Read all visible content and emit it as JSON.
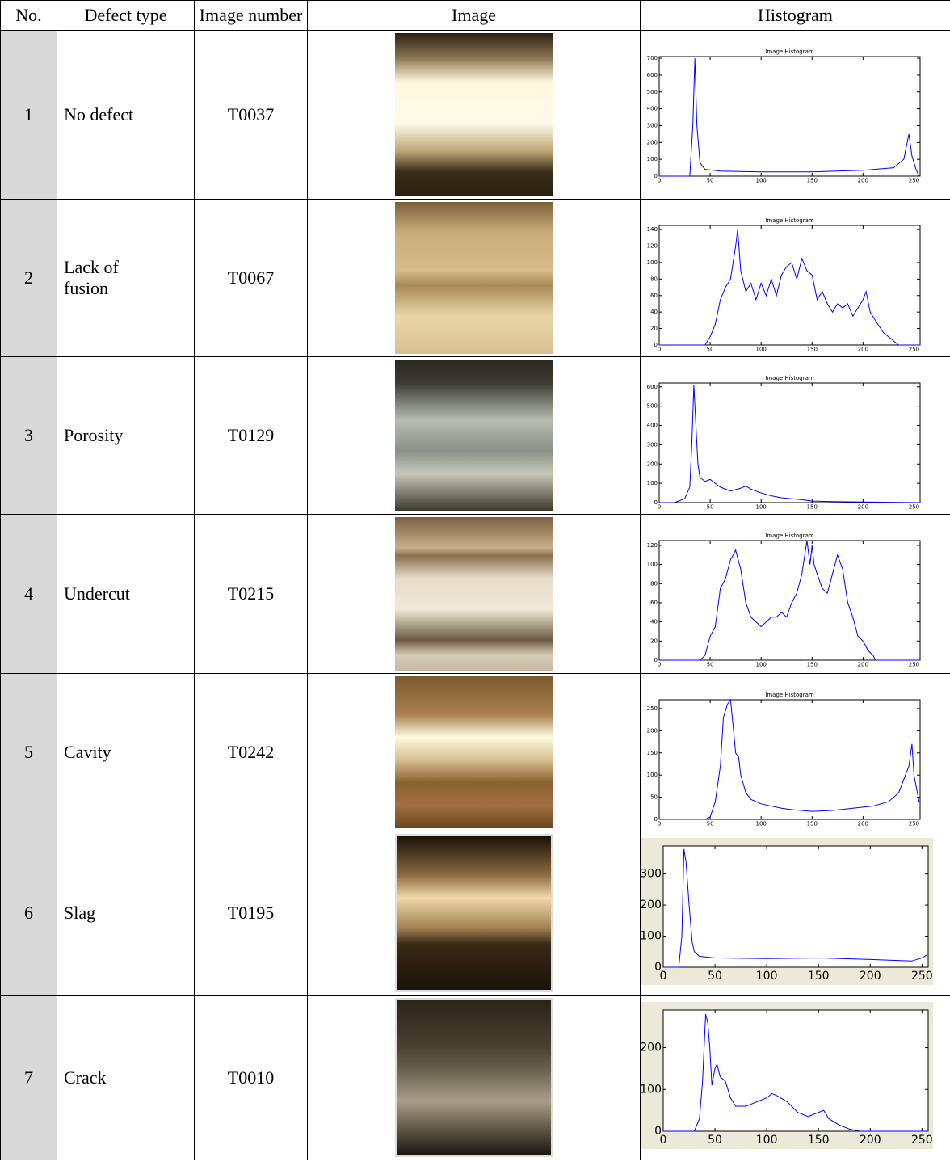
{
  "table": {
    "header": [
      "No.",
      "Defect type",
      "Image number",
      "Image",
      "Histogram"
    ],
    "rows": [
      {
        "no": "1",
        "defect_type": "No defect",
        "image_number": "T0037",
        "histogram": {
          "type": "line",
          "title": "Image Histogram",
          "color": "#0000ff",
          "x": [
            0,
            30,
            33,
            35,
            37,
            40,
            45,
            60,
            100,
            150,
            200,
            230,
            240,
            245,
            248,
            252,
            255
          ],
          "values": [
            0,
            0,
            300,
            700,
            300,
            80,
            40,
            30,
            25,
            25,
            35,
            50,
            100,
            250,
            120,
            40,
            0
          ],
          "xlim": [
            0,
            256
          ],
          "ylim": [
            0,
            710
          ],
          "xticks": [
            0,
            50,
            100,
            150,
            200,
            250
          ],
          "yticks": [
            0,
            100,
            200,
            300,
            400,
            500,
            600,
            700
          ]
        }
      },
      {
        "no": "2",
        "defect_type": "Lack of fusion",
        "image_number": "T0067",
        "histogram": {
          "type": "line",
          "title": "Image Histogram",
          "color": "#0000ff",
          "x": [
            0,
            45,
            50,
            55,
            60,
            65,
            70,
            75,
            77,
            80,
            85,
            90,
            95,
            100,
            105,
            110,
            115,
            120,
            125,
            130,
            135,
            140,
            145,
            150,
            155,
            160,
            165,
            170,
            175,
            180,
            185,
            190,
            195,
            200,
            203,
            207,
            212,
            220,
            225,
            230,
            235,
            256
          ],
          "values": [
            0,
            0,
            10,
            25,
            55,
            70,
            80,
            120,
            140,
            90,
            65,
            75,
            55,
            75,
            60,
            80,
            60,
            85,
            95,
            100,
            80,
            105,
            90,
            85,
            55,
            65,
            50,
            40,
            50,
            45,
            50,
            35,
            45,
            55,
            65,
            40,
            30,
            15,
            10,
            5,
            0,
            0
          ],
          "xlim": [
            0,
            256
          ],
          "ylim": [
            0,
            145
          ],
          "xticks": [
            0,
            50,
            100,
            150,
            200,
            250
          ],
          "yticks": [
            0,
            20,
            40,
            60,
            80,
            100,
            120,
            140
          ]
        }
      },
      {
        "no": "3",
        "defect_type": "Porosity",
        "image_number": "T0129",
        "histogram": {
          "type": "line",
          "title": "Image Histogram",
          "color": "#0000ff",
          "x": [
            0,
            15,
            25,
            30,
            32,
            34,
            36,
            38,
            40,
            45,
            50,
            55,
            60,
            70,
            80,
            85,
            90,
            100,
            110,
            120,
            130,
            140,
            150,
            170,
            200,
            256
          ],
          "values": [
            0,
            0,
            20,
            80,
            300,
            610,
            400,
            200,
            130,
            110,
            120,
            100,
            80,
            60,
            75,
            85,
            70,
            50,
            35,
            25,
            20,
            15,
            8,
            5,
            3,
            0
          ],
          "xlim": [
            0,
            256
          ],
          "ylim": [
            0,
            620
          ],
          "xticks": [
            0,
            50,
            100,
            150,
            200,
            250
          ],
          "yticks": [
            0,
            100,
            200,
            300,
            400,
            500,
            600
          ]
        }
      },
      {
        "no": "4",
        "defect_type": "Undercut",
        "image_number": "T0215",
        "histogram": {
          "type": "line",
          "title": "Image Histogram",
          "color": "#0000ff",
          "x": [
            0,
            40,
            45,
            50,
            55,
            60,
            65,
            70,
            75,
            80,
            85,
            90,
            95,
            100,
            105,
            110,
            115,
            120,
            125,
            130,
            135,
            140,
            145,
            148,
            150,
            152,
            155,
            160,
            165,
            170,
            175,
            180,
            185,
            190,
            195,
            200,
            205,
            210,
            212,
            256
          ],
          "values": [
            0,
            0,
            5,
            25,
            35,
            75,
            85,
            105,
            115,
            95,
            60,
            45,
            40,
            35,
            40,
            45,
            45,
            50,
            45,
            60,
            70,
            90,
            125,
            100,
            120,
            100,
            90,
            75,
            70,
            90,
            110,
            95,
            60,
            45,
            25,
            20,
            10,
            5,
            0,
            0
          ],
          "xlim": [
            0,
            256
          ],
          "ylim": [
            0,
            125
          ],
          "xticks": [
            0,
            50,
            100,
            150,
            200,
            250
          ],
          "yticks": [
            0,
            20,
            40,
            60,
            80,
            100,
            120
          ]
        }
      },
      {
        "no": "5",
        "defect_type": "Cavity",
        "image_number": "T0242",
        "histogram": {
          "type": "line",
          "title": "Image Histogram",
          "color": "#0000ff",
          "x": [
            0,
            45,
            50,
            55,
            60,
            63,
            67,
            70,
            73,
            75,
            78,
            80,
            85,
            90,
            100,
            110,
            120,
            130,
            150,
            170,
            190,
            210,
            225,
            235,
            240,
            245,
            248,
            250,
            255
          ],
          "values": [
            0,
            0,
            5,
            40,
            120,
            230,
            260,
            270,
            200,
            150,
            140,
            100,
            60,
            45,
            35,
            30,
            25,
            22,
            18,
            20,
            25,
            30,
            40,
            60,
            90,
            120,
            170,
            100,
            40
          ],
          "xlim": [
            0,
            256
          ],
          "ylim": [
            0,
            270
          ],
          "xticks": [
            0,
            50,
            100,
            150,
            200,
            250
          ],
          "yticks": [
            0,
            50,
            100,
            150,
            200,
            250
          ]
        }
      },
      {
        "no": "6",
        "defect_type": "Slag",
        "image_number": "T0195",
        "histogram": {
          "type": "line",
          "color": "#0000ff",
          "background": "#ece9d8",
          "x": [
            0,
            15,
            18,
            20,
            22,
            25,
            28,
            30,
            35,
            50,
            100,
            150,
            200,
            240,
            250,
            255
          ],
          "values": [
            0,
            0,
            100,
            380,
            340,
            200,
            80,
            50,
            35,
            30,
            28,
            30,
            25,
            20,
            30,
            40
          ],
          "xlim": [
            0,
            256
          ],
          "ylim": [
            0,
            390
          ],
          "xticks": [
            0,
            50,
            100,
            150,
            200,
            250
          ],
          "yticks": [
            0,
            100,
            200,
            300
          ]
        }
      },
      {
        "no": "7",
        "defect_type": "Crack",
        "image_number": "T0010",
        "histogram": {
          "type": "line",
          "color": "#0000ff",
          "background": "#ece9d8",
          "x": [
            0,
            30,
            35,
            38,
            41,
            43,
            45,
            47,
            50,
            52,
            55,
            60,
            65,
            70,
            80,
            90,
            100,
            105,
            110,
            120,
            130,
            140,
            150,
            155,
            160,
            170,
            180,
            190,
            256
          ],
          "values": [
            0,
            0,
            30,
            120,
            280,
            260,
            200,
            110,
            150,
            160,
            130,
            120,
            80,
            60,
            60,
            70,
            80,
            90,
            85,
            70,
            45,
            35,
            45,
            50,
            30,
            15,
            5,
            0,
            0
          ],
          "xlim": [
            0,
            256
          ],
          "ylim": [
            0,
            290
          ],
          "xticks": [
            0,
            50,
            100,
            150,
            200,
            250
          ],
          "yticks": [
            0,
            100,
            200
          ]
        }
      }
    ]
  }
}
